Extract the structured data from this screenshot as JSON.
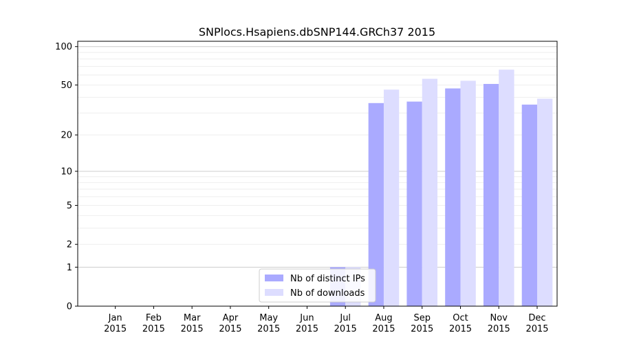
{
  "chart_data": {
    "type": "bar",
    "title": "SNPlocs.Hsapiens.dbSNP144.GRCh37 2015",
    "xlabel": "",
    "ylabel": "",
    "y_scale": "log(1+y)",
    "ylim": [
      0,
      110
    ],
    "yticks": [
      "0",
      "1",
      "2",
      "5",
      "10",
      "20",
      "50",
      "100"
    ],
    "categories": [
      {
        "month": "Jan",
        "year": "2015"
      },
      {
        "month": "Feb",
        "year": "2015"
      },
      {
        "month": "Mar",
        "year": "2015"
      },
      {
        "month": "Apr",
        "year": "2015"
      },
      {
        "month": "May",
        "year": "2015"
      },
      {
        "month": "Jun",
        "year": "2015"
      },
      {
        "month": "Jul",
        "year": "2015"
      },
      {
        "month": "Aug",
        "year": "2015"
      },
      {
        "month": "Sep",
        "year": "2015"
      },
      {
        "month": "Oct",
        "year": "2015"
      },
      {
        "month": "Nov",
        "year": "2015"
      },
      {
        "month": "Dec",
        "year": "2015"
      }
    ],
    "series": [
      {
        "name": "Nb of distinct IPs",
        "color": "#aaaaff",
        "values": [
          0,
          0,
          0,
          0,
          0,
          0,
          1,
          36,
          37,
          47,
          51,
          35
        ]
      },
      {
        "name": "Nb of downloads",
        "color": "#ddddff",
        "values": [
          0,
          0,
          0,
          0,
          0,
          0,
          1,
          46,
          56,
          54,
          66,
          39
        ]
      }
    ],
    "legend_position": "bottom-center",
    "grid": true
  }
}
